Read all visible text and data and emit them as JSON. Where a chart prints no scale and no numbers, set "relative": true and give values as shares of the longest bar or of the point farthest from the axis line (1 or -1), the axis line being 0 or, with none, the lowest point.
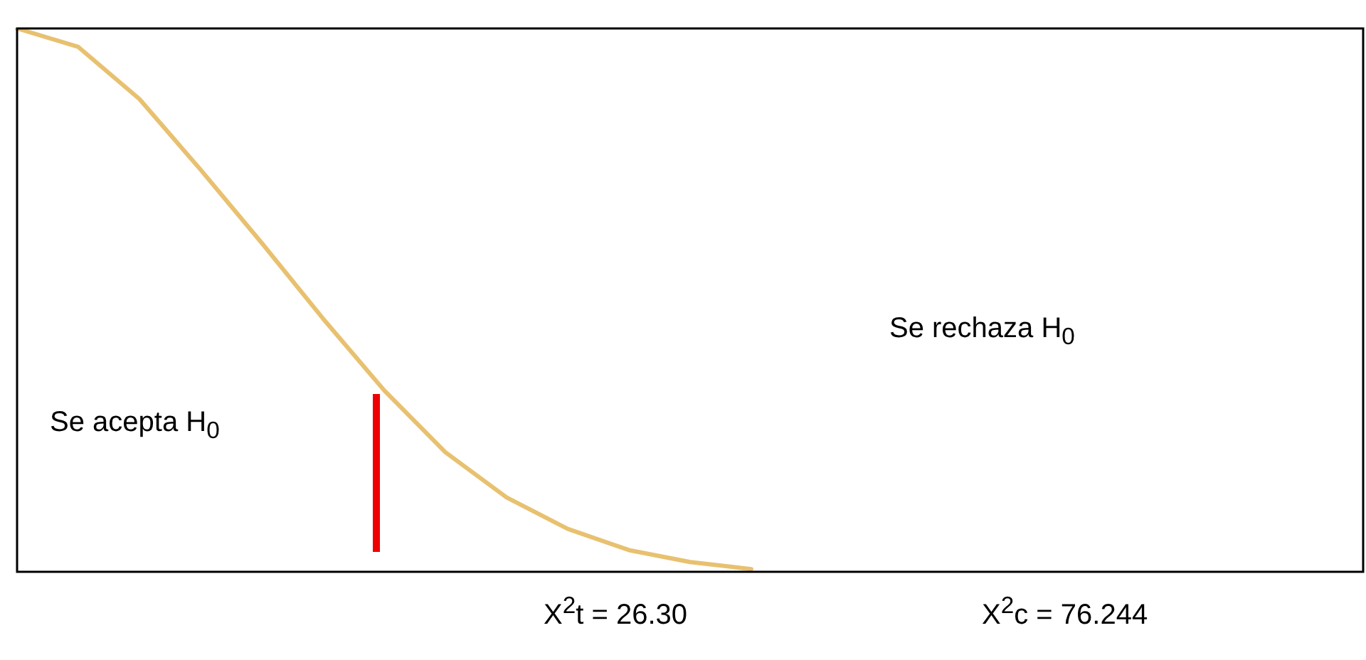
{
  "chart_data": {
    "type": "line",
    "relative": true,
    "categories": [
      null,
      null,
      null,
      null,
      null,
      null,
      null,
      null,
      null,
      null,
      null,
      null,
      null,
      null,
      null,
      null,
      null,
      null,
      null,
      null,
      null,
      null,
      null
    ],
    "series": [
      {
        "color": "#e8c170",
        "values": [
          1.0,
          0.966,
          0.87,
          0.74,
          0.605,
          0.466,
          0.334,
          0.22,
          0.137,
          0.079,
          0.04,
          0.018,
          0.005,
          null,
          null,
          null,
          null,
          null,
          null,
          null,
          null,
          null,
          null
        ]
      }
    ],
    "annotations": [
      "Se acepta H$_{0}$",
      "Se rechaza H$_{0}$",
      "X$^{2}$t = 26.30",
      "X$^{2}$c = 76.244"
    ],
    "marker": "none",
    "line_style": "solid"
  }
}
